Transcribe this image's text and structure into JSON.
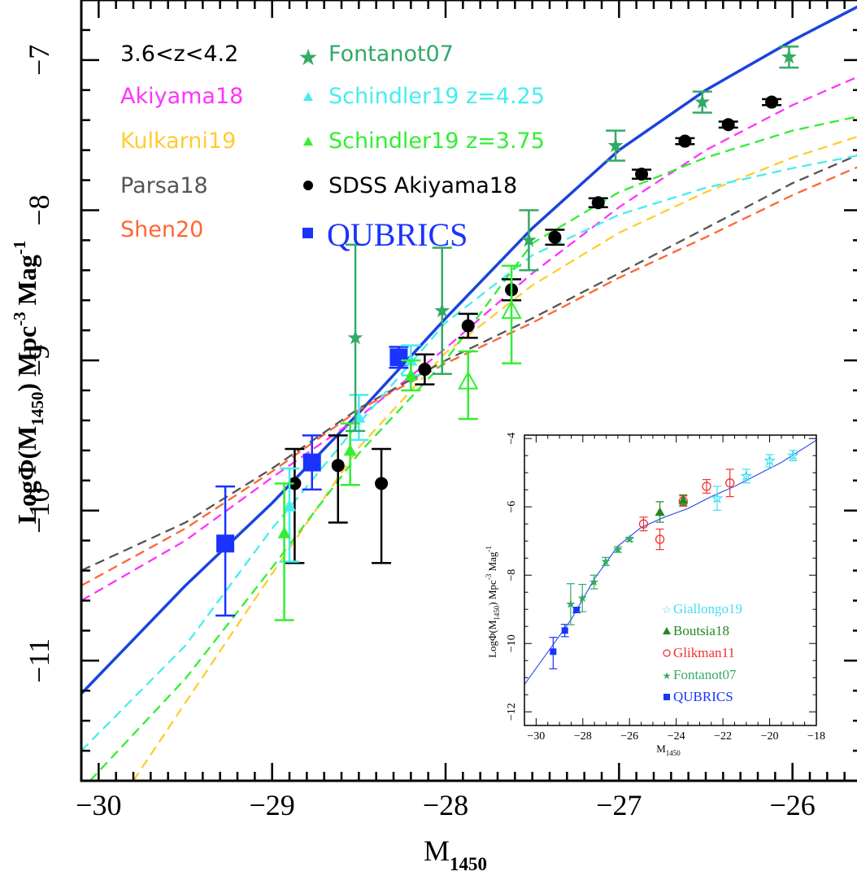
{
  "chart_data": {
    "type": "scatter",
    "main": {
      "xlabel_main": "M",
      "xlabel_sub": "1450",
      "ylabel_pre": "LogΦ(M",
      "ylabel_sub": "1450",
      "ylabel_post": ")  Mpc",
      "ylabel_exp1": "-3",
      "ylabel_mid": " Mag",
      "ylabel_exp2": "-1",
      "xlim": [
        -30.1,
        -25.6
      ],
      "ylim": [
        -11.8,
        -6.6
      ],
      "xticks": [
        -30,
        -29,
        -28,
        -27,
        -26
      ],
      "xtick_labels": [
        "−30",
        "−29",
        "−28",
        "−27",
        "−26"
      ],
      "yticks": [
        -11,
        -10,
        -9,
        -8,
        -7
      ],
      "ytick_labels": [
        "−11",
        "−10",
        "−9",
        "−8",
        "−7"
      ],
      "legend": {
        "title": "3.6<z<4.2",
        "entries": [
          {
            "label": "Akiyama18",
            "color": "#ff33ff"
          },
          {
            "label": "Kulkarni19",
            "color": "#ffcc33"
          },
          {
            "label": "Parsa18",
            "color": "#555555"
          },
          {
            "label": "Shen20",
            "color": "#ff6633"
          },
          {
            "label": "Fontanot07",
            "color": "#33aa66",
            "marker": "star"
          },
          {
            "label": "Schindler19 z=4.25",
            "color": "#44eeee",
            "marker": "triangle"
          },
          {
            "label": "Schindler19 z=3.75",
            "color": "#33ee33",
            "marker": "triangle"
          },
          {
            "label": "SDSS Akiyama18",
            "color": "#000000",
            "marker": "circle"
          },
          {
            "label": "QUBRICS",
            "color": "#1a33ff",
            "marker": "square"
          }
        ]
      },
      "curves": [
        {
          "name": "QUBRICS fit",
          "color": "#1a44dd",
          "style": "solid",
          "points": [
            [
              -30.1,
              -11.22
            ],
            [
              -29.5,
              -10.5
            ],
            [
              -29,
              -9.95
            ],
            [
              -28.5,
              -9.35
            ],
            [
              -28,
              -8.72
            ],
            [
              -27.5,
              -8.12
            ],
            [
              -27,
              -7.6
            ],
            [
              -26.5,
              -7.2
            ],
            [
              -26,
              -6.87
            ],
            [
              -25.6,
              -6.63
            ]
          ]
        },
        {
          "name": "Akiyama18",
          "color": "#ff33ff",
          "style": "dashed",
          "points": [
            [
              -30.1,
              -10.6
            ],
            [
              -29.5,
              -10.2
            ],
            [
              -29,
              -9.78
            ],
            [
              -28.5,
              -9.38
            ],
            [
              -28,
              -8.92
            ],
            [
              -27.5,
              -8.42
            ],
            [
              -27,
              -7.98
            ],
            [
              -26.5,
              -7.6
            ],
            [
              -26,
              -7.3
            ],
            [
              -25.6,
              -7.1
            ]
          ]
        },
        {
          "name": "Kulkarni19",
          "color": "#ffcc33",
          "style": "dashed",
          "points": [
            [
              -29.8,
              -11.8
            ],
            [
              -29.5,
              -11.28
            ],
            [
              -29,
              -10.42
            ],
            [
              -28.5,
              -9.58
            ],
            [
              -28,
              -8.95
            ],
            [
              -27.5,
              -8.5
            ],
            [
              -27,
              -8.15
            ],
            [
              -26.5,
              -7.88
            ],
            [
              -26,
              -7.65
            ],
            [
              -25.6,
              -7.5
            ]
          ]
        },
        {
          "name": "Parsa18",
          "color": "#555555",
          "style": "dashed",
          "points": [
            [
              -30.1,
              -10.4
            ],
            [
              -29.5,
              -10.08
            ],
            [
              -29,
              -9.72
            ],
            [
              -28.5,
              -9.32
            ],
            [
              -28,
              -9.0
            ],
            [
              -27.5,
              -8.72
            ],
            [
              -27,
              -8.42
            ],
            [
              -26.5,
              -8.12
            ],
            [
              -26,
              -7.82
            ],
            [
              -25.6,
              -7.62
            ]
          ]
        },
        {
          "name": "Shen20",
          "color": "#ff6633",
          "style": "dashed",
          "points": [
            [
              -30.1,
              -10.5
            ],
            [
              -29.5,
              -10.12
            ],
            [
              -29,
              -9.74
            ],
            [
              -28.5,
              -9.33
            ],
            [
              -28,
              -9.02
            ],
            [
              -27.5,
              -8.75
            ],
            [
              -27,
              -8.45
            ],
            [
              -26.5,
              -8.18
            ],
            [
              -26,
              -7.9
            ],
            [
              -25.6,
              -7.7
            ]
          ]
        },
        {
          "name": "Schindler19 z=4.25",
          "color": "#44eeee",
          "style": "dashed",
          "points": [
            [
              -30.1,
              -11.6
            ],
            [
              -29.5,
              -10.9
            ],
            [
              -29,
              -10.12
            ],
            [
              -28.5,
              -9.42
            ],
            [
              -28,
              -8.75
            ],
            [
              -27.5,
              -8.3
            ],
            [
              -27,
              -8.03
            ],
            [
              -26.5,
              -7.85
            ],
            [
              -26,
              -7.72
            ],
            [
              -25.6,
              -7.63
            ]
          ]
        },
        {
          "name": "Schindler19 z=3.75",
          "color": "#33ee33",
          "style": "dashed",
          "points": [
            [
              -30.05,
              -11.8
            ],
            [
              -29.5,
              -11.12
            ],
            [
              -29,
              -10.38
            ],
            [
              -28.5,
              -9.62
            ],
            [
              -28,
              -9.0
            ],
            [
              -27.5,
              -8.22
            ],
            [
              -27,
              -7.88
            ],
            [
              -26.5,
              -7.65
            ],
            [
              -26,
              -7.47
            ],
            [
              -25.6,
              -7.37
            ]
          ]
        }
      ],
      "points": [
        {
          "series": "QUBRICS",
          "marker": "square",
          "color": "#1a33ff",
          "size": 22,
          "data": [
            [
              -29.27,
              -10.22,
              0.38,
              0.48
            ],
            [
              -28.77,
              -9.68,
              0.18,
              0.18
            ],
            [
              -28.27,
              -8.98,
              0.07,
              0.07
            ]
          ]
        },
        {
          "series": "SDSS Akiyama18",
          "marker": "circle",
          "color": "#000000",
          "size": 8,
          "data": [
            [
              -28.87,
              -9.82,
              0.23,
              0.53
            ],
            [
              -28.62,
              -9.7,
              0.2,
              0.38
            ],
            [
              -28.37,
              -9.82,
              0.23,
              0.53
            ],
            [
              -28.12,
              -9.06,
              0.1,
              0.1
            ],
            [
              -27.87,
              -8.77,
              0.08,
              0.08
            ],
            [
              -27.62,
              -8.53,
              0.07,
              0.07
            ],
            [
              -27.37,
              -8.18,
              0.05,
              0.05
            ],
            [
              -27.12,
              -7.95,
              0.03,
              0.03
            ],
            [
              -26.87,
              -7.76,
              0.03,
              0.03
            ],
            [
              -26.62,
              -7.54,
              0.02,
              0.02
            ],
            [
              -26.37,
              -7.43,
              0.02,
              0.02
            ],
            [
              -26.12,
              -7.28,
              0.02,
              0.02
            ]
          ]
        },
        {
          "series": "Schindler19 z=4.25",
          "marker": "triangle",
          "color": "#44eeee",
          "size": 8,
          "data": [
            [
              -28.9,
              -9.97,
              0.25,
              0.37
            ],
            [
              -28.5,
              -9.38,
              0.15,
              0.15
            ],
            [
              -28.2,
              -9.0,
              0.1,
              0.1
            ]
          ]
        },
        {
          "series": "Schindler19 z=3.75",
          "marker": "triangle",
          "color": "#33ee33",
          "size": 8,
          "data": [
            [
              -28.93,
              -10.15,
              0.33,
              0.58
            ],
            [
              -28.55,
              -9.6,
              0.18,
              0.23
            ],
            [
              -28.2,
              -9.1,
              0.1,
              0.1
            ]
          ]
        },
        {
          "series": "Schindler19 z=3.75 (open)",
          "marker": "triangle-open",
          "color": "#33ee33",
          "size": 11,
          "data": [
            [
              -27.87,
              -9.14,
              0.2,
              0.25
            ],
            [
              -27.62,
              -8.67,
              0.3,
              0.35
            ]
          ]
        },
        {
          "series": "Fontanot07",
          "marker": "star",
          "color": "#33aa66",
          "size": 9,
          "data": [
            [
              -28.52,
              -8.85,
              0.62,
              0.62
            ],
            [
              -28.02,
              -8.67,
              0.42,
              0.42
            ],
            [
              -27.52,
              -8.2,
              0.2,
              0.2
            ],
            [
              -27.02,
              -7.57,
              0.1,
              0.1
            ],
            [
              -26.52,
              -7.28,
              0.07,
              0.07
            ],
            [
              -26.02,
              -6.98,
              0.07,
              0.07
            ]
          ]
        }
      ]
    },
    "inset": {
      "xlabel_main": "M",
      "xlabel_sub": "1450",
      "ylabel_pre": "LogΦ(M",
      "ylabel_sub": "1450",
      "ylabel_post": ")  Mpc",
      "ylabel_exp1": "-3",
      "ylabel_mid": " Mag",
      "ylabel_exp2": "-1",
      "xlim": [
        -30.5,
        -18
      ],
      "ylim": [
        -12.4,
        -3.9
      ],
      "xticks": [
        -30,
        -28,
        -26,
        -24,
        -22,
        -20,
        -18
      ],
      "xtick_labels": [
        "−30",
        "−28",
        "−26",
        "−24",
        "−22",
        "−20",
        "−18"
      ],
      "yticks": [
        -12,
        -10,
        -8,
        -6,
        -4
      ],
      "ytick_labels": [
        "−12",
        "−10",
        "−8",
        "−6",
        "−4"
      ],
      "legend": [
        {
          "label": "Giallongo19",
          "color": "#44ddee",
          "marker": "star-open"
        },
        {
          "label": "Boutsia18",
          "color": "#228822",
          "marker": "triangle"
        },
        {
          "label": "Glikman11",
          "color": "#ee3333",
          "marker": "circle-open"
        },
        {
          "label": "Fontanot07",
          "color": "#33aa66",
          "marker": "star"
        },
        {
          "label": "QUBRICS",
          "color": "#1a33ff",
          "marker": "square"
        }
      ],
      "curve": {
        "name": "QUBRICS fit",
        "color": "#3355ee",
        "points": [
          [
            -30.5,
            -11.2
          ],
          [
            -29.5,
            -10.25
          ],
          [
            -28.5,
            -9.3
          ],
          [
            -27.5,
            -8.1
          ],
          [
            -26.5,
            -7.15
          ],
          [
            -25.5,
            -6.6
          ],
          [
            -24.5,
            -6.3
          ],
          [
            -23.5,
            -6.05
          ],
          [
            -22.5,
            -5.7
          ],
          [
            -21.5,
            -5.4
          ],
          [
            -20.5,
            -5.05
          ],
          [
            -19.5,
            -4.7
          ],
          [
            -18,
            -4.05
          ]
        ]
      },
      "points": [
        {
          "series": "QUBRICS",
          "marker": "square",
          "color": "#1a33ff",
          "size": 8,
          "data": [
            [
              -29.27,
              -10.24,
              0.42,
              0.5
            ],
            [
              -28.77,
              -9.62,
              0.18,
              0.18
            ],
            [
              -28.27,
              -9.02,
              0.08,
              0.08
            ]
          ]
        },
        {
          "series": "Fontanot07",
          "marker": "star",
          "color": "#33aa66",
          "size": 5,
          "data": [
            [
              -28.52,
              -8.85,
              0.6,
              0.6
            ],
            [
              -28.02,
              -8.67,
              0.4,
              0.4
            ],
            [
              -27.52,
              -8.2,
              0.2,
              0.2
            ],
            [
              -27.02,
              -7.6,
              0.12,
              0.12
            ],
            [
              -26.5,
              -7.25,
              0.08,
              0.08
            ],
            [
              -26.0,
              -6.95,
              0.06,
              0.06
            ]
          ]
        },
        {
          "series": "Glikman11",
          "marker": "circle-open",
          "color": "#ee3333",
          "size": 5,
          "data": [
            [
              -25.4,
              -6.5,
              0.2,
              0.2
            ],
            [
              -24.7,
              -6.95,
              0.3,
              0.3
            ],
            [
              -23.7,
              -5.83,
              0.15,
              0.15
            ],
            [
              -22.7,
              -5.4,
              0.2,
              0.2
            ],
            [
              -21.7,
              -5.3,
              0.4,
              0.4
            ]
          ]
        },
        {
          "series": "Boutsia18",
          "marker": "triangle",
          "color": "#228822",
          "size": 6,
          "data": [
            [
              -24.7,
              -6.15,
              0.3,
              0.3
            ],
            [
              -23.7,
              -5.8,
              0.15,
              0.15
            ]
          ]
        },
        {
          "series": "Giallongo19",
          "marker": "star-open",
          "color": "#44ddee",
          "size": 6,
          "data": [
            [
              -22.25,
              -5.75,
              0.35,
              0.35
            ],
            [
              -21.0,
              -5.1,
              0.2,
              0.2
            ],
            [
              -20.0,
              -4.65,
              0.18,
              0.18
            ],
            [
              -19.0,
              -4.5,
              0.15,
              0.15
            ]
          ]
        }
      ]
    }
  }
}
